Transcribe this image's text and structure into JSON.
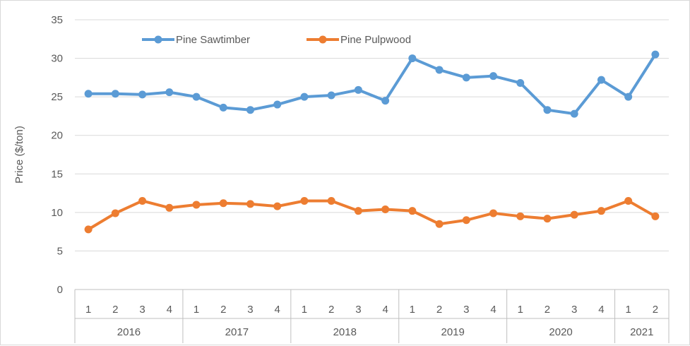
{
  "chart_data": {
    "type": "line",
    "title": "",
    "xlabel": "",
    "ylabel": "Price ($/ton)",
    "ylim": [
      0,
      35
    ],
    "yticks": [
      0,
      5,
      10,
      15,
      20,
      25,
      30,
      35
    ],
    "grid": true,
    "legend_placement": "top-left",
    "quarters": [
      "1",
      "2",
      "3",
      "4",
      "1",
      "2",
      "3",
      "4",
      "1",
      "2",
      "3",
      "4",
      "1",
      "2",
      "3",
      "4",
      "1",
      "2",
      "3",
      "4",
      "1",
      "2"
    ],
    "years": [
      {
        "label": "2016",
        "count": 4
      },
      {
        "label": "2017",
        "count": 4
      },
      {
        "label": "2018",
        "count": 4
      },
      {
        "label": "2019",
        "count": 4
      },
      {
        "label": "2020",
        "count": 4
      },
      {
        "label": "2021",
        "count": 2
      }
    ],
    "series": [
      {
        "name": "Pine Sawtimber",
        "color": "#5b9bd5",
        "values": [
          25.4,
          25.4,
          25.3,
          25.6,
          25.0,
          23.6,
          23.3,
          24.0,
          25.0,
          25.2,
          25.9,
          24.5,
          30.0,
          28.5,
          27.5,
          27.7,
          26.8,
          23.3,
          22.8,
          27.2,
          25.0,
          30.5
        ]
      },
      {
        "name": "Pine Pulpwood",
        "color": "#ed7d31",
        "values": [
          7.8,
          9.9,
          11.5,
          10.6,
          11.0,
          11.2,
          11.1,
          10.8,
          11.5,
          11.5,
          10.2,
          10.4,
          10.2,
          8.5,
          9.0,
          9.9,
          9.5,
          9.2,
          9.7,
          10.2,
          11.5,
          9.5
        ]
      }
    ]
  }
}
